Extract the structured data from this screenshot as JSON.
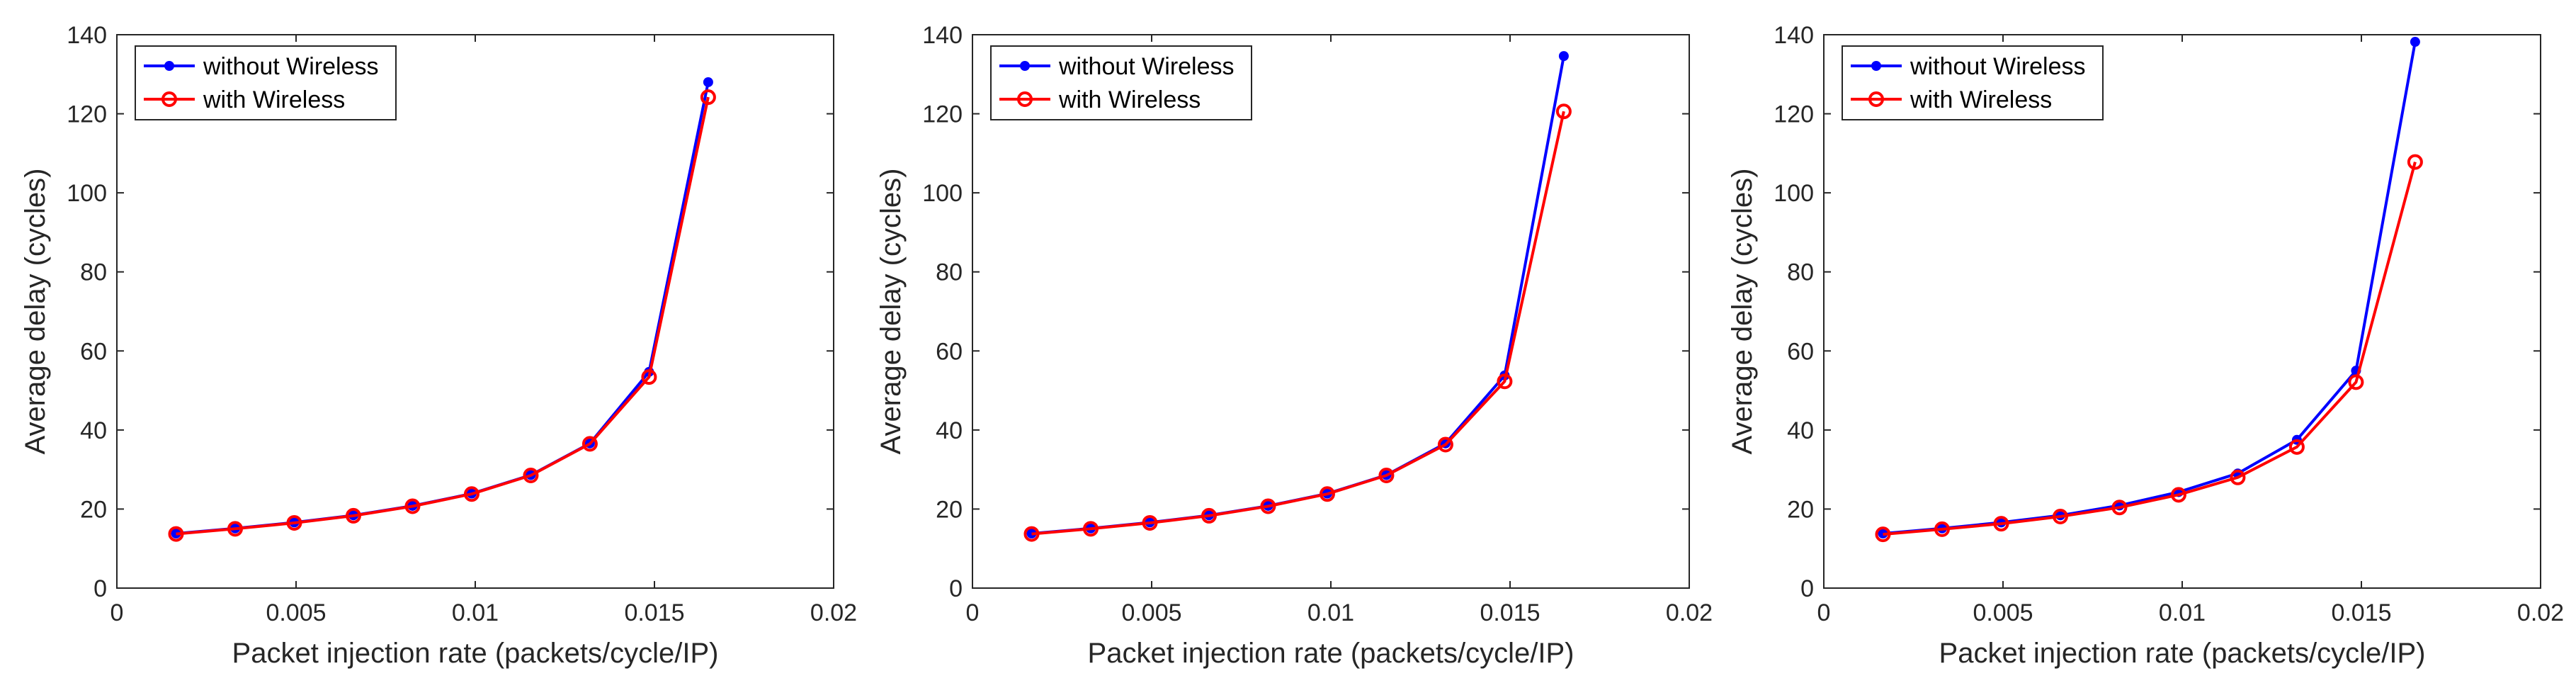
{
  "chart_data": [
    {
      "type": "line",
      "title": "",
      "xlabel": "Packet injection rate (packets/cycle/IP)",
      "ylabel": "Average delay (cycles)",
      "xlim": [
        0,
        0.02
      ],
      "ylim": [
        0,
        140
      ],
      "xticks": [
        0,
        0.005,
        0.01,
        0.015,
        0.02
      ],
      "xtick_labels": [
        "0",
        "0.005",
        "0.01",
        "0.015",
        "0.02"
      ],
      "yticks": [
        0,
        20,
        40,
        60,
        80,
        100,
        120,
        140
      ],
      "ytick_labels": [
        "0",
        "20",
        "40",
        "60",
        "80",
        "100",
        "120",
        "140"
      ],
      "grid": false,
      "legend_position": "top-left",
      "x": [
        0.00165,
        0.0033,
        0.00495,
        0.0066,
        0.00825,
        0.0099,
        0.01155,
        0.0132,
        0.01485,
        0.0165
      ],
      "series": [
        {
          "name": "without Wireless",
          "color": "#0000ff",
          "marker": "dot",
          "values": [
            13.8,
            15.1,
            16.6,
            18.4,
            20.8,
            23.9,
            28.6,
            36.6,
            54.7,
            128.0
          ]
        },
        {
          "name": "with Wireless",
          "color": "#ff0000",
          "marker": "circle",
          "values": [
            13.7,
            15.0,
            16.5,
            18.3,
            20.7,
            23.8,
            28.5,
            36.5,
            53.4,
            124.2
          ]
        }
      ]
    },
    {
      "type": "line",
      "title": "",
      "xlabel": "Packet injection rate (packets/cycle/IP)",
      "ylabel": "Average delay (cycles)",
      "xlim": [
        0,
        0.02
      ],
      "ylim": [
        0,
        140
      ],
      "xticks": [
        0,
        0.005,
        0.01,
        0.015,
        0.02
      ],
      "xtick_labels": [
        "0",
        "0.005",
        "0.01",
        "0.015",
        "0.02"
      ],
      "yticks": [
        0,
        20,
        40,
        60,
        80,
        100,
        120,
        140
      ],
      "ytick_labels": [
        "0",
        "20",
        "40",
        "60",
        "80",
        "100",
        "120",
        "140"
      ],
      "grid": false,
      "legend_position": "top-left",
      "x": [
        0.00165,
        0.0033,
        0.00495,
        0.0066,
        0.00825,
        0.0099,
        0.01155,
        0.0132,
        0.01485,
        0.0165
      ],
      "series": [
        {
          "name": "without Wireless",
          "color": "#0000ff",
          "marker": "dot",
          "values": [
            13.8,
            15.1,
            16.6,
            18.4,
            20.8,
            23.9,
            28.6,
            36.6,
            53.8,
            134.6
          ]
        },
        {
          "name": "with Wireless",
          "color": "#ff0000",
          "marker": "circle",
          "values": [
            13.7,
            15.0,
            16.5,
            18.3,
            20.7,
            23.8,
            28.5,
            36.3,
            52.3,
            120.6
          ]
        }
      ]
    },
    {
      "type": "line",
      "title": "",
      "xlabel": "Packet injection rate (packets/cycle/IP)",
      "ylabel": "Average delay (cycles)",
      "xlim": [
        0,
        0.02
      ],
      "ylim": [
        0,
        140
      ],
      "xticks": [
        0,
        0.005,
        0.01,
        0.015,
        0.02
      ],
      "xtick_labels": [
        "0",
        "0.005",
        "0.01",
        "0.015",
        "0.02"
      ],
      "yticks": [
        0,
        20,
        40,
        60,
        80,
        100,
        120,
        140
      ],
      "ytick_labels": [
        "0",
        "20",
        "40",
        "60",
        "80",
        "100",
        "120",
        "140"
      ],
      "grid": false,
      "legend_position": "top-left",
      "x": [
        0.00165,
        0.0033,
        0.00495,
        0.0066,
        0.00825,
        0.0099,
        0.01155,
        0.0132,
        0.01485,
        0.0165
      ],
      "series": [
        {
          "name": "without Wireless",
          "color": "#0000ff",
          "marker": "dot",
          "values": [
            13.8,
            15.1,
            16.6,
            18.4,
            20.9,
            24.3,
            29.0,
            37.5,
            55.0,
            138.2
          ]
        },
        {
          "name": "with Wireless",
          "color": "#ff0000",
          "marker": "circle",
          "values": [
            13.6,
            14.9,
            16.3,
            18.1,
            20.4,
            23.6,
            28.0,
            35.7,
            52.1,
            107.8
          ]
        }
      ]
    }
  ]
}
